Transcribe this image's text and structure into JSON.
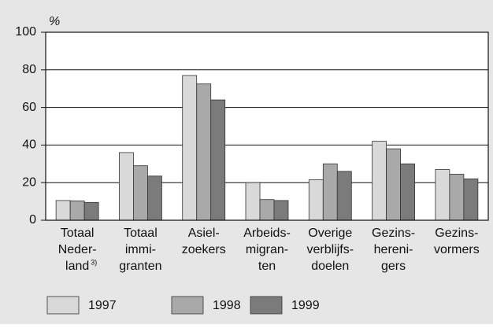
{
  "chart_data": {
    "type": "bar",
    "y_label": "%",
    "categories": [
      [
        "Totaal",
        "Neder-",
        "land"
      ],
      [
        "Totaal",
        "immi-",
        "granten"
      ],
      [
        "Asiel-",
        "zoekers"
      ],
      [
        "Arbeids-",
        "migran-",
        "ten"
      ],
      [
        "Overige",
        "verblijfs-",
        "doelen"
      ],
      [
        "Gezins-",
        "hereni-",
        "gers"
      ],
      [
        "Gezins-",
        "vormers"
      ]
    ],
    "category_footnotes": [
      "3)",
      null,
      null,
      null,
      null,
      null,
      null
    ],
    "series": [
      {
        "name": "1997",
        "color": "#d9d9d9",
        "values": [
          10.5,
          36,
          77,
          20,
          21.5,
          42,
          27
        ]
      },
      {
        "name": "1998",
        "color": "#a9a9a9",
        "values": [
          10.3,
          29,
          72.5,
          11,
          30,
          38,
          24.5
        ]
      },
      {
        "name": "1999",
        "color": "#7b7b7b",
        "values": [
          9.5,
          23.5,
          64,
          10.5,
          26,
          30,
          22
        ]
      }
    ],
    "ylim": [
      0,
      100
    ],
    "yticks": [
      0,
      20,
      40,
      60,
      80,
      100
    ],
    "grid": true
  }
}
